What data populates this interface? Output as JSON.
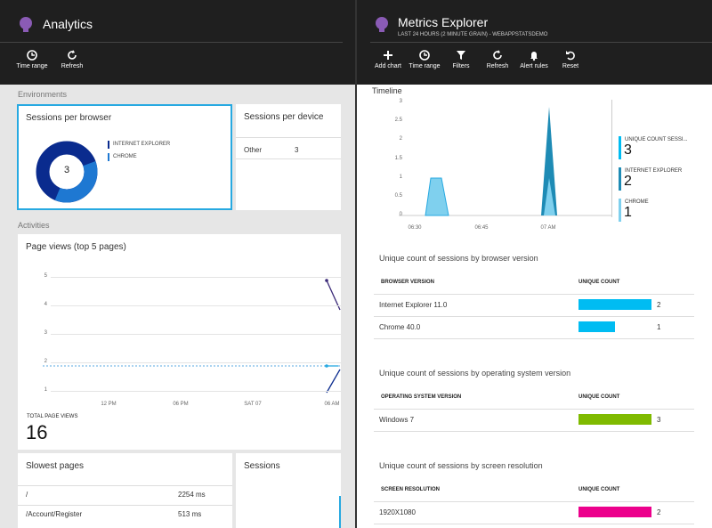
{
  "left_blade": {
    "title": "Analytics",
    "toolbar": [
      "Time range",
      "Refresh"
    ],
    "sections": [
      "Environments",
      "Activities"
    ],
    "sessions_per_browser": {
      "title": "Sessions per browser",
      "total": "3",
      "legend": [
        "INTERNET EXPLORER",
        "CHROME"
      ]
    },
    "sessions_per_device": {
      "title": "Sessions per device",
      "rows": [
        [
          "Other",
          "3"
        ]
      ]
    },
    "page_views": {
      "title": "Page views (top 5 pages)",
      "yticks": [
        "5",
        "4",
        "3",
        "2",
        "1"
      ],
      "xticks": [
        "12 PM",
        "06 PM",
        "SAT 07",
        "06 AM"
      ],
      "total_label": "TOTAL PAGE VIEWS",
      "total": "16"
    },
    "slowest_pages": {
      "title": "Slowest pages",
      "rows": [
        [
          "/",
          "2254 ms"
        ],
        [
          "/Account/Register",
          "513 ms"
        ]
      ]
    },
    "sessions": {
      "title": "Sessions"
    }
  },
  "right_blade": {
    "title": "Metrics Explorer",
    "subtitle": "LAST 24 HOURS (2 MINUTE GRAIN) - WEBAPPSTATSDEMO",
    "toolbar": [
      "Add chart",
      "Time range",
      "Filters",
      "Refresh",
      "Alert rules",
      "Reset"
    ],
    "timeline": {
      "title": "Timeline",
      "yticks": [
        "3",
        "2.5",
        "2",
        "1.5",
        "1",
        "0.5",
        "0"
      ],
      "xticks": [
        "06:30",
        "06:45",
        "07 AM"
      ],
      "legend": [
        {
          "name": "UNIQUE COUNT SESSI...",
          "value": "3",
          "color": "#00bcf2"
        },
        {
          "name": "INTERNET EXPLORER",
          "value": "2",
          "color": "#1e8bb5"
        },
        {
          "name": "CHROME",
          "value": "1",
          "color": "#7fd0ee"
        }
      ]
    },
    "tables": [
      {
        "title": "Unique count of sessions by browser version",
        "columns": [
          "BROWSER VERSION",
          "UNIQUE COUNT"
        ],
        "color": "#00bcf2",
        "rows": [
          {
            "label": "Internet Explorer 11.0",
            "value": 2
          },
          {
            "label": "Chrome 40.0",
            "value": 1
          }
        ]
      },
      {
        "title": "Unique count of sessions by operating system version",
        "columns": [
          "OPERATING SYSTEM VERSION",
          "UNIQUE COUNT"
        ],
        "color": "#7fba00",
        "rows": [
          {
            "label": "Windows 7",
            "value": 3
          }
        ]
      },
      {
        "title": "Unique count of sessions by screen resolution",
        "columns": [
          "SCREEN RESOLUTION",
          "UNIQUE COUNT"
        ],
        "color": "#ec008c",
        "rows": [
          {
            "label": "1920X1080",
            "value": 2
          }
        ]
      }
    ]
  }
}
